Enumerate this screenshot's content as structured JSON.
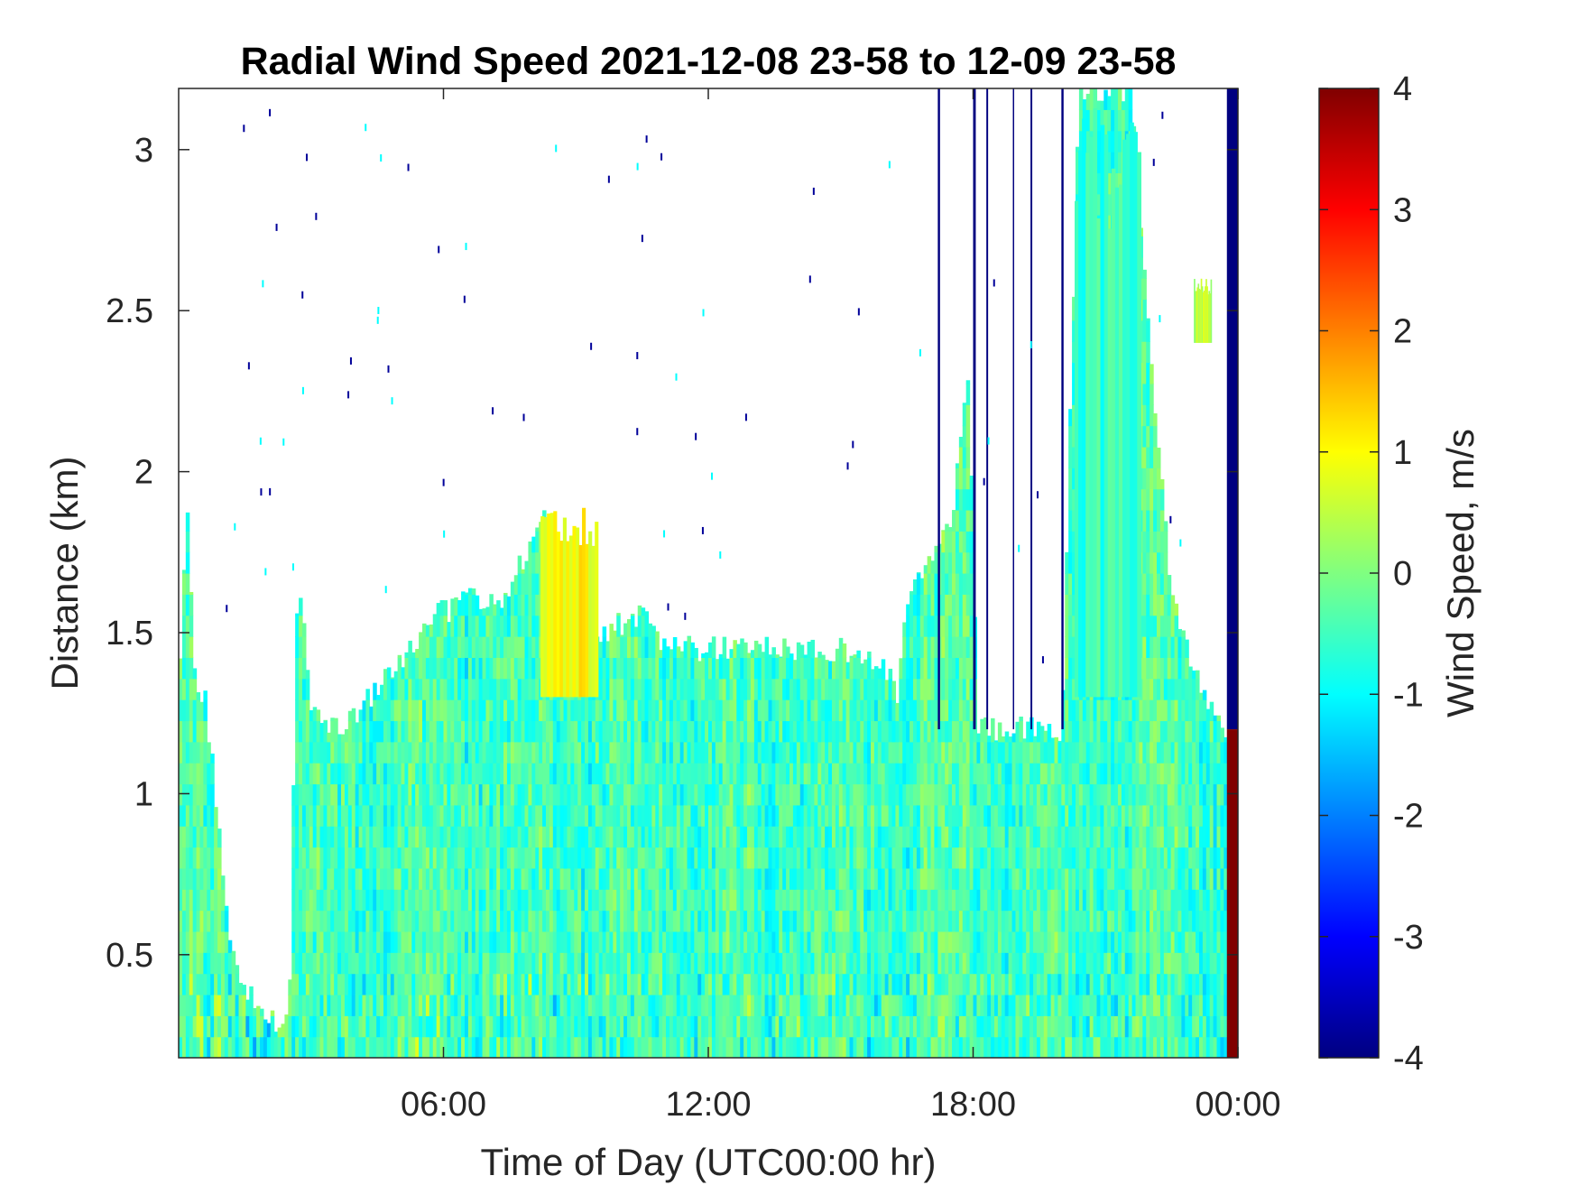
{
  "chart_data": {
    "type": "heatmap",
    "title": "Radial Wind Speed 2021-12-08 23-58 to 12-09 23-58",
    "xlabel": "Time of Day (UTC00:00 hr)",
    "ylabel": "Distance (km)",
    "colorbar_label": "Wind Speed, m/s",
    "xlim_hours": [
      0,
      24
    ],
    "ylim_km": [
      0.18,
      3.19
    ],
    "clim": [
      -4,
      4
    ],
    "colormap": "jet",
    "x_ticks": [
      {
        "hour": 6,
        "label": "06:00"
      },
      {
        "hour": 12,
        "label": "12:00"
      },
      {
        "hour": 18,
        "label": "18:00"
      },
      {
        "hour": 24,
        "label": "00:00"
      }
    ],
    "y_ticks": [
      {
        "value": 0.5,
        "label": "0.5"
      },
      {
        "value": 1,
        "label": "1"
      },
      {
        "value": 1.5,
        "label": "1.5"
      },
      {
        "value": 2,
        "label": "2"
      },
      {
        "value": 2.5,
        "label": "2.5"
      },
      {
        "value": 3,
        "label": "3"
      }
    ],
    "colorbar_ticks": [
      {
        "value": -4,
        "label": "-4"
      },
      {
        "value": -3,
        "label": "-3"
      },
      {
        "value": -2,
        "label": "-2"
      },
      {
        "value": -1,
        "label": "-1"
      },
      {
        "value": 0,
        "label": "0"
      },
      {
        "value": 1,
        "label": "1"
      },
      {
        "value": 2,
        "label": "2"
      },
      {
        "value": 3,
        "label": "3"
      },
      {
        "value": 4,
        "label": "4"
      }
    ],
    "data_top_km": [
      [
        0.0,
        1.35
      ],
      [
        0.2,
        1.9
      ],
      [
        0.4,
        1.3
      ],
      [
        0.6,
        1.3
      ],
      [
        0.9,
        0.9
      ],
      [
        1.2,
        0.5
      ],
      [
        1.5,
        0.4
      ],
      [
        2.0,
        0.3
      ],
      [
        2.5,
        0.3
      ],
      [
        2.7,
        1.7
      ],
      [
        3.0,
        1.25
      ],
      [
        3.5,
        1.2
      ],
      [
        4.0,
        1.25
      ],
      [
        5.0,
        1.4
      ],
      [
        5.7,
        1.55
      ],
      [
        6.6,
        1.6
      ],
      [
        7.3,
        1.6
      ],
      [
        8.3,
        1.85
      ],
      [
        9.5,
        1.5
      ],
      [
        10.5,
        1.55
      ],
      [
        11.0,
        1.45
      ],
      [
        12.0,
        1.45
      ],
      [
        13.5,
        1.45
      ],
      [
        15.0,
        1.45
      ],
      [
        16.0,
        1.4
      ],
      [
        16.3,
        1.3
      ],
      [
        16.5,
        1.6
      ],
      [
        17.5,
        1.85
      ],
      [
        17.9,
        2.3
      ],
      [
        18.1,
        1.2
      ],
      [
        19.0,
        1.2
      ],
      [
        19.5,
        1.2
      ],
      [
        20.0,
        1.15
      ],
      [
        20.4,
        3.19
      ],
      [
        21.6,
        3.19
      ],
      [
        22.0,
        2.4
      ],
      [
        22.5,
        1.6
      ],
      [
        23.0,
        1.4
      ],
      [
        23.6,
        1.2
      ],
      [
        24.0,
        1.2
      ]
    ],
    "series": [
      {
        "name": "gap",
        "x_range_hours": [
          23.75,
          24.0
        ],
        "y_range_km": [
          1.2,
          3.19
        ],
        "value": -4
      },
      {
        "name": "gap",
        "x_range_hours": [
          23.75,
          24.0
        ],
        "y_range_km": [
          0.18,
          1.2
        ],
        "value": 4
      },
      {
        "name": "echo",
        "x_range_hours": [
          8.2,
          9.5
        ],
        "y_range_km": [
          1.3,
          1.9
        ],
        "value": 1.0
      },
      {
        "name": "echo",
        "x_range_hours": [
          20.3,
          21.8
        ],
        "y_range_km": [
          1.3,
          3.19
        ],
        "value": -0.6
      },
      {
        "name": "echo",
        "x_range_hours": [
          23.0,
          23.4
        ],
        "y_range_km": [
          2.4,
          2.6
        ],
        "value": 0.5
      }
    ]
  }
}
